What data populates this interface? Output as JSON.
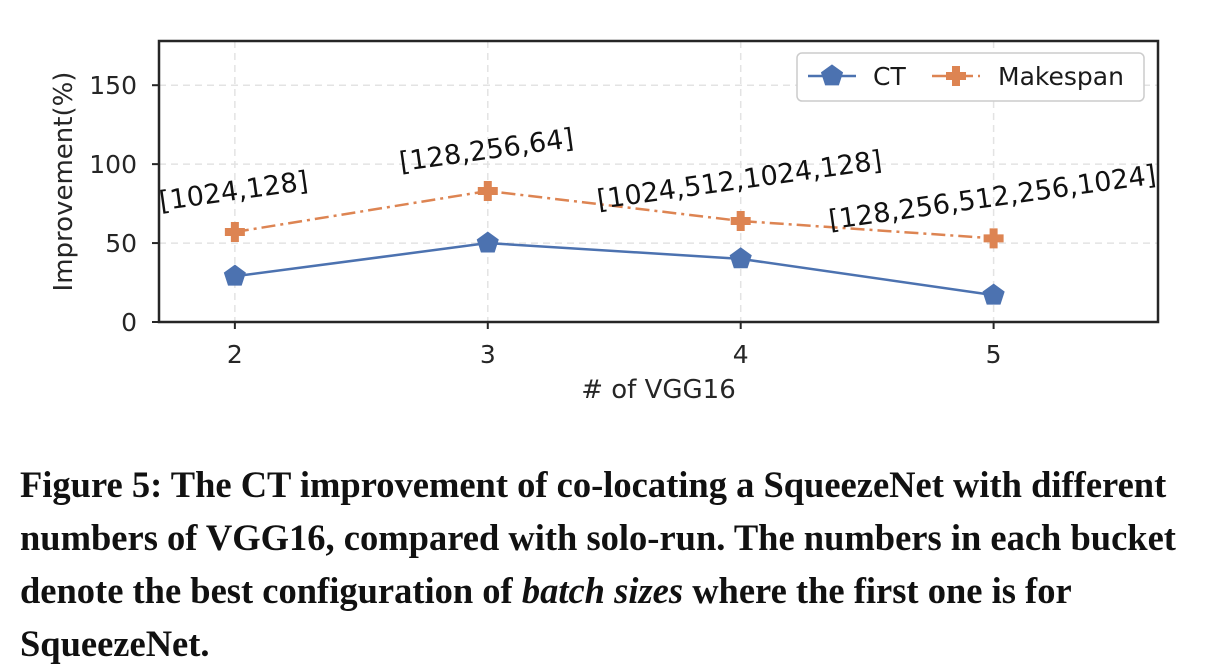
{
  "chart_data": {
    "type": "line",
    "xlabel": "# of VGG16",
    "ylabel": "Improvement(%)",
    "x": [
      2,
      3,
      4,
      5
    ],
    "xlim": [
      1.7,
      5.65
    ],
    "ylim": [
      0,
      178
    ],
    "yticks": [
      0,
      50,
      100,
      150
    ],
    "grid": true,
    "legend": "top-right",
    "series": [
      {
        "name": "CT",
        "values": [
          29,
          50,
          40,
          17
        ],
        "color": "#4c72b0",
        "marker": "pentagon",
        "style": "solid"
      },
      {
        "name": "Makespan",
        "values": [
          57,
          83,
          64,
          53
        ],
        "color": "#dd8452",
        "marker": "plus",
        "style": "dashdot"
      }
    ],
    "annotations": [
      {
        "text": "[1024,128]",
        "x": 2
      },
      {
        "text": "[128,256,64]",
        "x": 3
      },
      {
        "text": "[1024,512,1024,128]",
        "x": 4
      },
      {
        "text": "[128,256,512,256,1024]",
        "x": 5
      }
    ]
  },
  "caption": {
    "part1": "Figure 5: The CT improvement of co-locating a SqueezeNet with different numbers of VGG16, compared with solo-run. The numbers in each bucket denote the best configuration of ",
    "italic": "batch sizes",
    "part2": " where the first one is for SqueezeNet."
  }
}
